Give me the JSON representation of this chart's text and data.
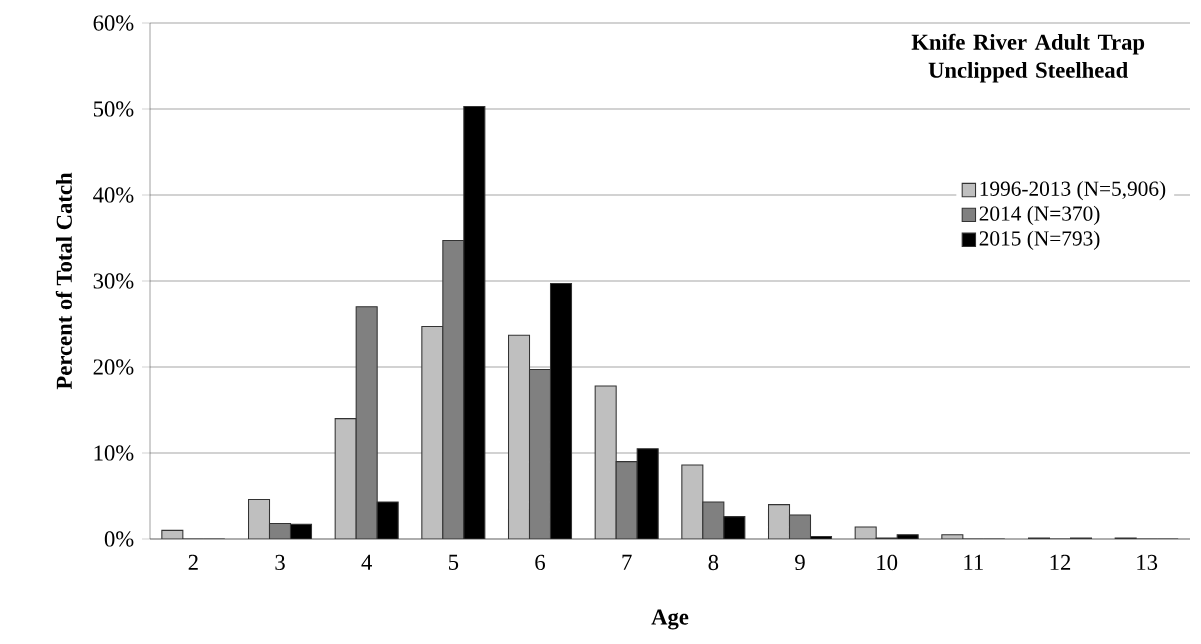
{
  "chart_data": {
    "type": "bar",
    "xlabel": "Age",
    "ylabel": "Percent of Total Catch",
    "legend_title": "Knife River Adult Trap Unclipped Steelhead",
    "categories": [
      "2",
      "3",
      "4",
      "5",
      "6",
      "7",
      "8",
      "9",
      "10",
      "11",
      "12",
      "13"
    ],
    "series": [
      {
        "name": "1996-2013 (N=5,906)",
        "color": "#bfbfbf",
        "values": [
          1.0,
          4.6,
          14.0,
          24.7,
          23.7,
          17.8,
          8.6,
          4.0,
          1.4,
          0.5,
          0.1,
          0.1
        ]
      },
      {
        "name": "2014 (N=370)",
        "color": "#808080",
        "values": [
          0,
          1.8,
          27.0,
          34.7,
          19.7,
          9.0,
          4.3,
          2.8,
          0.1,
          0,
          0,
          0
        ]
      },
      {
        "name": "2015 (N=793)",
        "color": "#000000",
        "values": [
          0,
          1.7,
          4.3,
          50.3,
          29.7,
          10.5,
          2.6,
          0.3,
          0.5,
          0,
          0.1,
          0
        ]
      }
    ],
    "ylim": [
      0,
      60
    ],
    "yticks": [
      {
        "value": 0,
        "label": "0%"
      },
      {
        "value": 10,
        "label": "10%"
      },
      {
        "value": 20,
        "label": "20%"
      },
      {
        "value": 30,
        "label": "30%"
      },
      {
        "value": 40,
        "label": "40%"
      },
      {
        "value": 50,
        "label": "50%"
      },
      {
        "value": 60,
        "label": "60%"
      }
    ],
    "grid": "y",
    "legend": "top right"
  }
}
